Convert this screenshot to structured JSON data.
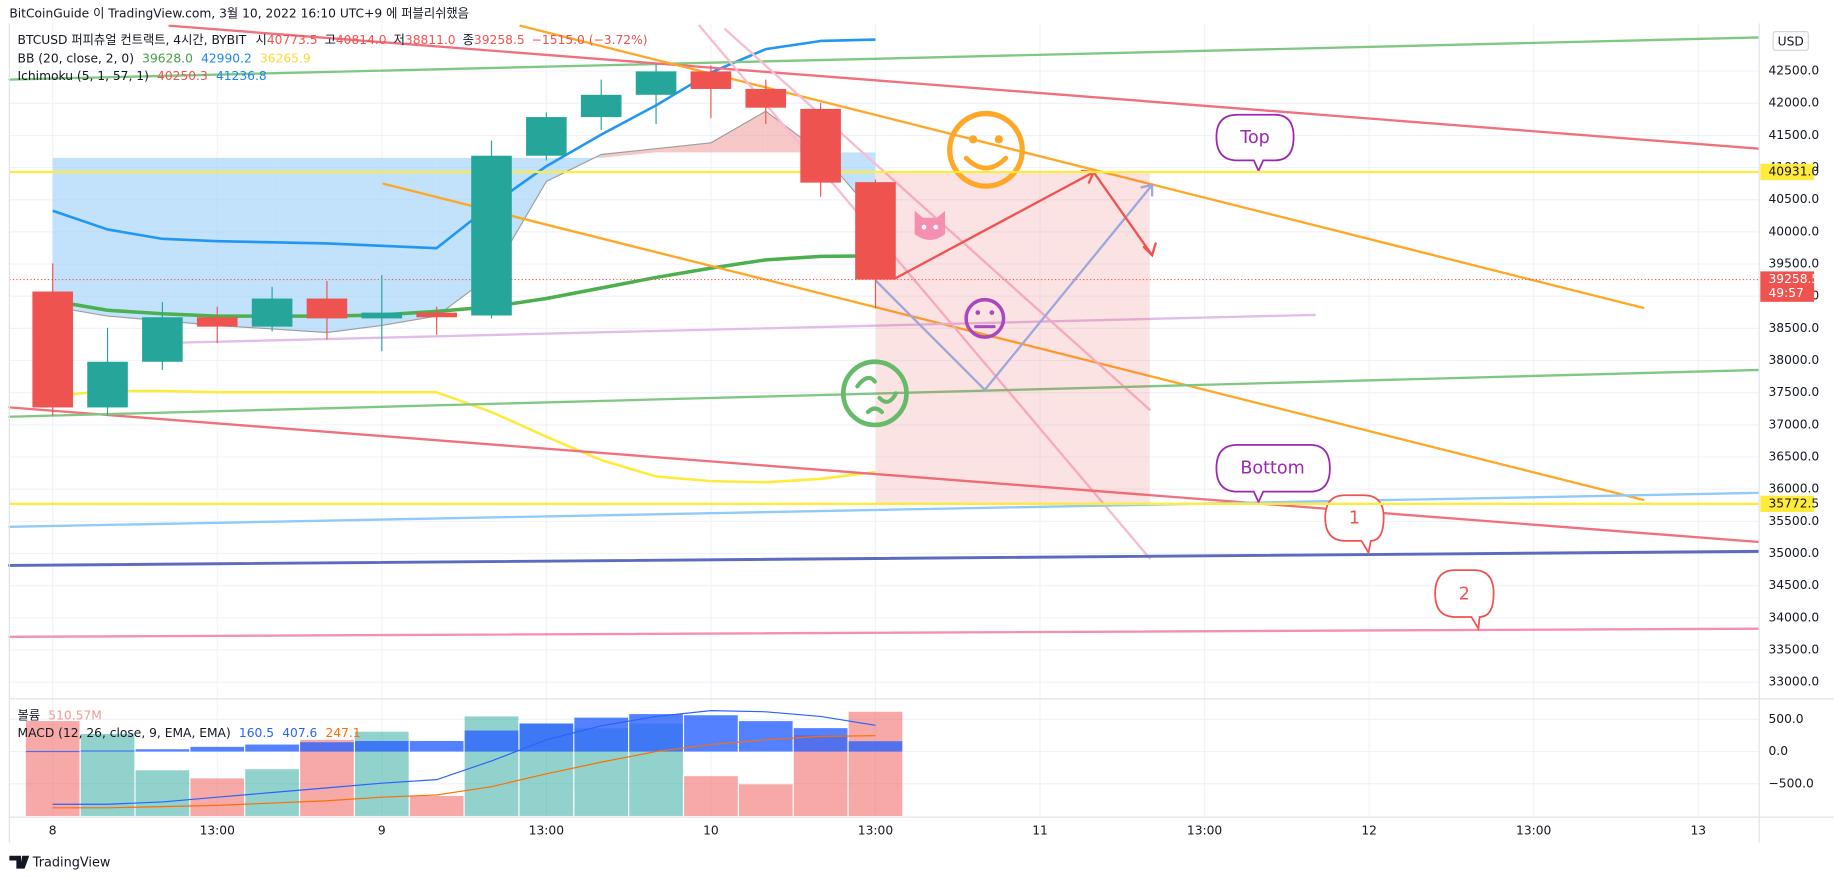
{
  "header": {
    "published": "BitCoinGuide 이 TradingView.com, 3월 10, 2022 16:10 UTC+9 에 퍼블리쉬했음",
    "symbol": "BTCUSD 퍼피츄얼 컨트랙트, 4시간, BYBIT",
    "ohlc": [
      {
        "label": "시",
        "value": "40773.5"
      },
      {
        "label": "고",
        "value": "40814.0"
      },
      {
        "label": "저",
        "value": "38811.0"
      },
      {
        "label": "종",
        "value": "39258.5"
      }
    ],
    "change": "−1515.0 (−3.72%)"
  },
  "legends": [
    {
      "name": "BB (20, close, 2, 0)",
      "values": [
        {
          "text": "39628.0",
          "color": "#43a047"
        },
        {
          "text": "42990.2",
          "color": "#1e88e5"
        },
        {
          "text": "36265.9",
          "color": "#fdd835"
        }
      ]
    },
    {
      "name": "Ichimoku (5, 1, 57, 1)",
      "values": [
        {
          "text": "40250.3",
          "color": "#ef5350"
        },
        {
          "text": "41236.8",
          "color": "#1e88e5"
        }
      ]
    },
    {
      "name": "볼륨",
      "values": [
        {
          "text": "510.57M",
          "color": "#ef9a9a"
        }
      ]
    },
    {
      "name": "MACD (12, 26, close, 9, EMA, EMA)",
      "values": [
        {
          "text": "160.5",
          "color": "#2962ff"
        },
        {
          "text": "407.6",
          "color": "#2962ff"
        },
        {
          "text": "247.1",
          "color": "#ff6d00"
        }
      ]
    }
  ],
  "currency": "USD",
  "countdown": "49:57",
  "annotations": [
    "Top",
    "Bottom",
    "1",
    "2"
  ],
  "footer": "TradingView",
  "chart_data": {
    "type": "candlestick",
    "open": [
      39073,
      37271,
      37981,
      38673,
      38527,
      38964,
      38655,
      38745,
      38700,
      41184,
      41785,
      42131,
      42495,
      42222,
      41912,
      40773.5
    ],
    "high": [
      39510,
      38509,
      38909,
      38837,
      39146,
      39237,
      39328,
      38837,
      41421,
      41858,
      42367,
      42604,
      42586,
      42367,
      42003,
      40814
    ],
    "low": [
      37144,
      37144,
      37854,
      38272,
      38454,
      38327,
      38145,
      38400,
      38655,
      41112,
      41585,
      41676,
      41767,
      41676,
      40547,
      38811
    ],
    "close": [
      37271,
      37981,
      38673,
      38527,
      38964,
      38655,
      38745,
      38673,
      41184,
      41785,
      42131,
      42495,
      42222,
      41931,
      40766,
      39258.5
    ],
    "up_color": "#26a69a",
    "down_color": "#ef5350",
    "bb": [
      {
        "name": "basis",
        "color": "#4caf50",
        "width": 3,
        "values": [
          38928,
          38782,
          38727,
          38691,
          38691,
          38691,
          38709,
          38764,
          38837,
          38964,
          39128,
          39292,
          39437,
          39565,
          39619,
          39628
        ]
      },
      {
        "name": "upper",
        "color": "#2196f3",
        "width": 2.2,
        "values": [
          40329,
          40038,
          39892,
          39856,
          39838,
          39820,
          39783,
          39747,
          40420,
          41021,
          41512,
          41967,
          42477,
          42841,
          42968,
          42990
        ]
      },
      {
        "name": "lower",
        "color": "#ffeb3b",
        "width": 2.2,
        "values": [
          37453,
          37526,
          37526,
          37508,
          37508,
          37508,
          37508,
          37508,
          37199,
          36816,
          36452,
          36198,
          36125,
          36107,
          36161,
          36265.9
        ]
      }
    ],
    "ichimoku": {
      "lead_a": [
        38837,
        38691,
        38618,
        38545,
        38491,
        38436,
        38545,
        38691,
        39328,
        40784,
        41203,
        41294,
        41385,
        41876,
        41239,
        40250.3
      ],
      "lead_b": [
        41150,
        41150,
        41150,
        41150,
        41150,
        41150,
        41150,
        41150,
        41150,
        41150,
        41150,
        41236.8,
        41236.8,
        41236.8,
        41236.8,
        41236.8
      ],
      "bull_color": "#ef9a9a",
      "bear_color": "#90caf9"
    },
    "price_labels": [
      {
        "value": 40931.0,
        "label": "40931.0",
        "color": "#ffeb3b",
        "line": true
      },
      {
        "value": 39258.5,
        "label": "39258.5",
        "color": "#ef5350",
        "line": false
      },
      {
        "value": 35772.5,
        "label": "35772.5",
        "color": "#ffeb3b",
        "line": true
      }
    ],
    "xlim": [
      -0.79,
      31.11
    ],
    "xticks": [
      {
        "value": 0,
        "label": "8"
      },
      {
        "value": 3,
        "label": "13:00"
      },
      {
        "value": 6,
        "label": "9"
      },
      {
        "value": 9,
        "label": "13:00"
      },
      {
        "value": 12,
        "label": "10"
      },
      {
        "value": 15,
        "label": "13:00"
      },
      {
        "value": 18,
        "label": "11"
      },
      {
        "value": 21,
        "label": "13:00"
      },
      {
        "value": 24,
        "label": "12"
      },
      {
        "value": 27,
        "label": "13:00"
      },
      {
        "value": 30,
        "label": "13"
      }
    ],
    "ylim": [
      32740,
      43150
    ],
    "yticks": [
      {
        "value": 33000,
        "label": "33000.0"
      },
      {
        "value": 33500,
        "label": "33500.0"
      },
      {
        "value": 34000,
        "label": "34000.0"
      },
      {
        "value": 34500,
        "label": "34500.0"
      },
      {
        "value": 35000,
        "label": "35000.0"
      },
      {
        "value": 35500,
        "label": "35500.0"
      },
      {
        "value": 36000,
        "label": "36000.0"
      },
      {
        "value": 36500,
        "label": "36500.0"
      },
      {
        "value": 37000,
        "label": "37000.0"
      },
      {
        "value": 37500,
        "label": "37500.0"
      },
      {
        "value": 38000,
        "label": "38000.0"
      },
      {
        "value": 38500,
        "label": "38500.0"
      },
      {
        "value": 39000,
        "label": "39000.0"
      },
      {
        "value": 39500,
        "label": "39500.0"
      },
      {
        "value": 40000,
        "label": "40000.0"
      },
      {
        "value": 40500,
        "label": "40500.0"
      },
      {
        "value": 41000,
        "label": "41000.0"
      },
      {
        "value": 41500,
        "label": "41500.0"
      },
      {
        "value": 42000,
        "label": "42000.0"
      },
      {
        "value": 42500,
        "label": "42500.0"
      }
    ],
    "grid": true
  },
  "lower_pane": {
    "volume": [
      465,
      402,
      224,
      184,
      229,
      373,
      413,
      98,
      488,
      453,
      430,
      453,
      195,
      155,
      396,
      510.57
    ],
    "histogram": [
      10,
      18,
      36,
      73,
      109,
      145,
      164,
      164,
      327,
      436,
      527,
      582,
      564,
      473,
      364,
      160.5
    ],
    "macd": [
      -818,
      -818,
      -782,
      -709,
      -636,
      -564,
      -491,
      -436,
      -145,
      182,
      400,
      545,
      636,
      618,
      545,
      407.6
    ],
    "signal": [
      -873,
      -873,
      -855,
      -836,
      -800,
      -764,
      -709,
      -673,
      -545,
      -345,
      -164,
      0,
      109,
      182,
      236,
      247.1
    ],
    "hist_color": "#2962ff",
    "macd_color": "#2962ff",
    "signal_color": "#ff6d00",
    "ylim": [
      -1000,
      800
    ],
    "yticks": [
      {
        "value": 500,
        "label": "500.0"
      },
      {
        "value": 0,
        "label": "0.0"
      },
      {
        "value": -500,
        "label": "−500.0"
      }
    ]
  }
}
